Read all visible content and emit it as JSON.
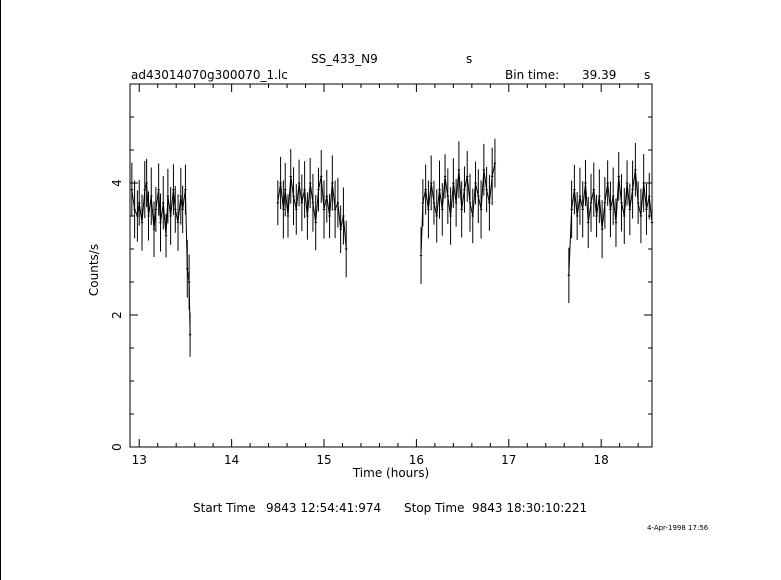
{
  "header": {
    "object_name": "SS_433_N9",
    "object_unit": "s",
    "file_name": "ad43014070g300070_1.lc",
    "bin_time_label": "Bin time:",
    "bin_time_value": "39.39",
    "bin_time_unit": "s"
  },
  "footer": {
    "start_label": "Start Time",
    "start_value": "9843 12:54:41:974",
    "stop_label": "Stop Time",
    "stop_value": "9843 18:30:10:221",
    "plot_date": "4-Apr-1998 17:56"
  },
  "chart_data": {
    "type": "line",
    "title": "SS_433_N9",
    "xlabel": "Time (hours)",
    "ylabel": "Counts/s",
    "xlim": [
      12.9,
      18.55
    ],
    "ylim": [
      0,
      5.5
    ],
    "x_ticks": [
      13,
      14,
      15,
      16,
      17,
      18
    ],
    "y_ticks": [
      0,
      2,
      4
    ],
    "grid": false,
    "style": "binned light curve with vertical error bars",
    "segments": [
      {
        "x_range": [
          12.92,
          13.55
        ],
        "points": [
          [
            12.92,
            3.9
          ],
          [
            12.95,
            3.6
          ],
          [
            12.98,
            3.5
          ],
          [
            13.0,
            3.7
          ],
          [
            13.03,
            3.4
          ],
          [
            13.06,
            3.9
          ],
          [
            13.08,
            4.0
          ],
          [
            13.1,
            3.5
          ],
          [
            13.13,
            3.8
          ],
          [
            13.16,
            3.3
          ],
          [
            13.18,
            3.6
          ],
          [
            13.21,
            3.9
          ],
          [
            13.23,
            3.4
          ],
          [
            13.26,
            3.7
          ],
          [
            13.29,
            3.2
          ],
          [
            13.31,
            3.8
          ],
          [
            13.34,
            3.5
          ],
          [
            13.37,
            3.9
          ],
          [
            13.39,
            3.6
          ],
          [
            13.42,
            3.4
          ],
          [
            13.45,
            3.8
          ],
          [
            13.47,
            3.6
          ],
          [
            13.5,
            3.9
          ],
          [
            13.52,
            2.7
          ],
          [
            13.54,
            2.5
          ],
          [
            13.55,
            1.7
          ]
        ]
      },
      {
        "x_range": [
          14.5,
          15.25
        ],
        "points": [
          [
            14.5,
            3.7
          ],
          [
            14.53,
            4.0
          ],
          [
            14.56,
            3.6
          ],
          [
            14.58,
            3.9
          ],
          [
            14.61,
            3.5
          ],
          [
            14.64,
            4.1
          ],
          [
            14.67,
            3.8
          ],
          [
            14.7,
            3.6
          ],
          [
            14.73,
            4.0
          ],
          [
            14.76,
            3.7
          ],
          [
            14.79,
            3.9
          ],
          [
            14.82,
            3.5
          ],
          [
            14.85,
            4.0
          ],
          [
            14.88,
            3.7
          ],
          [
            14.91,
            3.4
          ],
          [
            14.94,
            3.9
          ],
          [
            14.97,
            4.1
          ],
          [
            15.0,
            3.6
          ],
          [
            15.03,
            3.8
          ],
          [
            15.06,
            3.5
          ],
          [
            15.09,
            4.0
          ],
          [
            15.12,
            3.6
          ],
          [
            15.15,
            3.7
          ],
          [
            15.18,
            3.3
          ],
          [
            15.21,
            3.5
          ],
          [
            15.24,
            3.0
          ]
        ]
      },
      {
        "x_range": [
          16.05,
          16.85
        ],
        "points": [
          [
            16.05,
            2.9
          ],
          [
            16.07,
            3.7
          ],
          [
            16.1,
            3.9
          ],
          [
            16.13,
            3.6
          ],
          [
            16.16,
            4.0
          ],
          [
            16.19,
            3.7
          ],
          [
            16.22,
            3.5
          ],
          [
            16.25,
            3.9
          ],
          [
            16.28,
            3.6
          ],
          [
            16.31,
            4.1
          ],
          [
            16.34,
            3.8
          ],
          [
            16.37,
            3.5
          ],
          [
            16.4,
            4.0
          ],
          [
            16.43,
            3.7
          ],
          [
            16.46,
            4.2
          ],
          [
            16.49,
            3.6
          ],
          [
            16.52,
            3.9
          ],
          [
            16.55,
            4.1
          ],
          [
            16.58,
            3.7
          ],
          [
            16.61,
            3.5
          ],
          [
            16.64,
            4.0
          ],
          [
            16.67,
            3.8
          ],
          [
            16.7,
            3.6
          ],
          [
            16.73,
            4.2
          ],
          [
            16.76,
            3.9
          ],
          [
            16.79,
            3.7
          ],
          [
            16.82,
            4.1
          ],
          [
            16.85,
            4.3
          ]
        ]
      },
      {
        "x_range": [
          17.65,
          18.55
        ],
        "points": [
          [
            17.65,
            2.6
          ],
          [
            17.68,
            3.6
          ],
          [
            17.71,
            3.9
          ],
          [
            17.74,
            3.5
          ],
          [
            17.77,
            3.8
          ],
          [
            17.8,
            3.6
          ],
          [
            17.83,
            4.0
          ],
          [
            17.86,
            3.4
          ],
          [
            17.89,
            3.7
          ],
          [
            17.92,
            3.9
          ],
          [
            17.95,
            3.5
          ],
          [
            17.98,
            3.8
          ],
          [
            18.01,
            3.3
          ],
          [
            18.04,
            3.7
          ],
          [
            18.07,
            4.0
          ],
          [
            18.1,
            3.6
          ],
          [
            18.13,
            3.8
          ],
          [
            18.16,
            3.4
          ],
          [
            18.19,
            4.1
          ],
          [
            18.22,
            3.7
          ],
          [
            18.25,
            3.5
          ],
          [
            18.28,
            4.0
          ],
          [
            18.31,
            3.6
          ],
          [
            18.34,
            3.9
          ],
          [
            18.37,
            4.2
          ],
          [
            18.4,
            3.7
          ],
          [
            18.43,
            3.5
          ],
          [
            18.46,
            4.0
          ],
          [
            18.49,
            3.6
          ],
          [
            18.52,
            3.8
          ],
          [
            18.55,
            3.4
          ]
        ]
      }
    ]
  }
}
